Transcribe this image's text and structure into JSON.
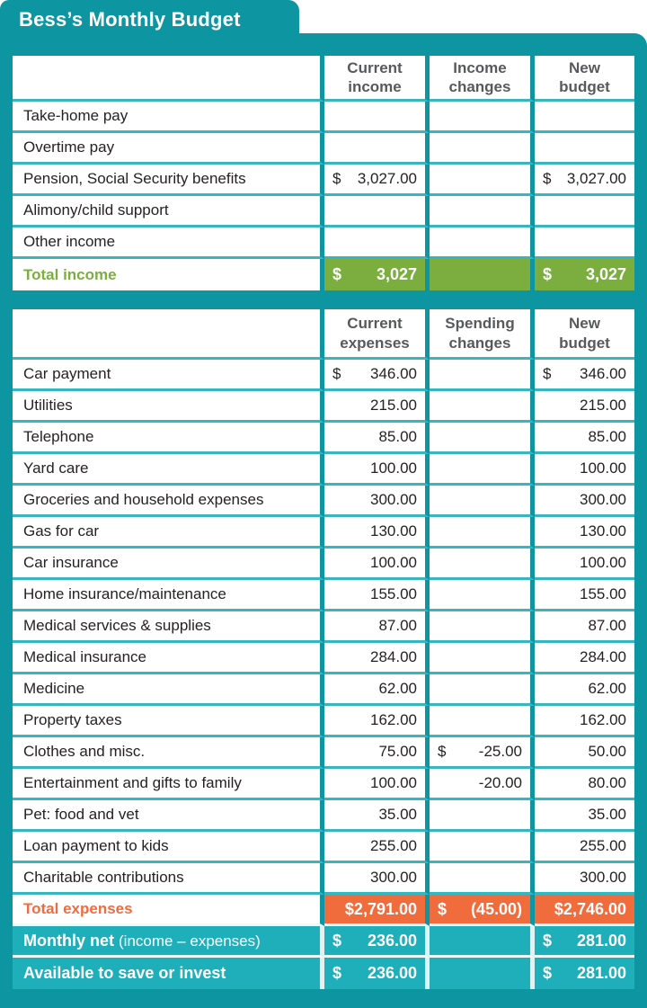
{
  "title": "Bess’s Monthly Budget",
  "colors": {
    "frame_teal": "#0d96a1",
    "summary_row_teal": "#1eafba",
    "row_separator_teal": "#35b6c1",
    "total_income_green": "#7bae3f",
    "total_expenses_orange": "#f16c3d",
    "header_text_gray": "#58595b",
    "body_text": "#262223"
  },
  "income_table": {
    "headers": [
      "",
      "Current\nincome",
      "Income\nchanges",
      "New\nbudget"
    ],
    "rows": [
      {
        "label": "Take-home pay",
        "cells": [
          null,
          null,
          null
        ]
      },
      {
        "label": "Overtime pay",
        "cells": [
          null,
          null,
          null
        ]
      },
      {
        "label": "Pension, Social Security benefits",
        "cells": [
          {
            "d": "$",
            "a": "3,027.00"
          },
          null,
          {
            "d": "$",
            "a": "3,027.00"
          }
        ]
      },
      {
        "label": "Alimony/child support",
        "cells": [
          null,
          null,
          null
        ]
      },
      {
        "label": "Other income",
        "cells": [
          null,
          null,
          null
        ]
      },
      {
        "label": "Total income",
        "style": "green",
        "cells": [
          {
            "d": "$",
            "a": "3,027"
          },
          null,
          {
            "d": "$",
            "a": "3,027"
          }
        ]
      }
    ]
  },
  "expenses_table": {
    "headers": [
      "",
      "Current\nexpenses",
      "Spending\nchanges",
      "New\nbudget"
    ],
    "rows": [
      {
        "label": "Car payment",
        "cells": [
          {
            "d": "$",
            "a": "346.00"
          },
          null,
          {
            "d": "$",
            "a": "346.00"
          }
        ]
      },
      {
        "label": "Utilities",
        "cells": [
          {
            "a": "215.00"
          },
          null,
          {
            "a": "215.00"
          }
        ]
      },
      {
        "label": "Telephone",
        "cells": [
          {
            "a": "85.00"
          },
          null,
          {
            "a": "85.00"
          }
        ]
      },
      {
        "label": "Yard care",
        "cells": [
          {
            "a": "100.00"
          },
          null,
          {
            "a": "100.00"
          }
        ]
      },
      {
        "label": "Groceries and household expenses",
        "cells": [
          {
            "a": "300.00"
          },
          null,
          {
            "a": "300.00"
          }
        ]
      },
      {
        "label": "Gas for car",
        "cells": [
          {
            "a": "130.00"
          },
          null,
          {
            "a": "130.00"
          }
        ]
      },
      {
        "label": "Car insurance",
        "cells": [
          {
            "a": "100.00"
          },
          null,
          {
            "a": "100.00"
          }
        ]
      },
      {
        "label": "Home insurance/maintenance",
        "cells": [
          {
            "a": "155.00"
          },
          null,
          {
            "a": "155.00"
          }
        ]
      },
      {
        "label": "Medical services & supplies",
        "cells": [
          {
            "a": "87.00"
          },
          null,
          {
            "a": "87.00"
          }
        ]
      },
      {
        "label": "Medical insurance",
        "cells": [
          {
            "a": "284.00"
          },
          null,
          {
            "a": "284.00"
          }
        ]
      },
      {
        "label": "Medicine",
        "cells": [
          {
            "a": "62.00"
          },
          null,
          {
            "a": "62.00"
          }
        ]
      },
      {
        "label": "Property taxes",
        "cells": [
          {
            "a": "162.00"
          },
          null,
          {
            "a": "162.00"
          }
        ]
      },
      {
        "label": "Clothes and misc.",
        "cells": [
          {
            "a": "75.00"
          },
          {
            "d": "$",
            "a": "-25.00"
          },
          {
            "a": "50.00"
          }
        ]
      },
      {
        "label": "Entertainment and gifts to family",
        "cells": [
          {
            "a": "100.00"
          },
          {
            "a": "-20.00"
          },
          {
            "a": "80.00"
          }
        ]
      },
      {
        "label": "Pet: food and vet",
        "cells": [
          {
            "a": "35.00"
          },
          null,
          {
            "a": "35.00"
          }
        ]
      },
      {
        "label": "Loan payment to kids",
        "cells": [
          {
            "a": "255.00"
          },
          null,
          {
            "a": "255.00"
          }
        ]
      },
      {
        "label": "Charitable contributions",
        "cells": [
          {
            "a": "300.00"
          },
          null,
          {
            "a": "300.00"
          }
        ]
      },
      {
        "label": "Total expenses",
        "style": "orange",
        "cells": [
          {
            "a": "$2,791.00"
          },
          {
            "d": "$",
            "a": "(45.00)"
          },
          {
            "a": "$2,746.00"
          }
        ]
      },
      {
        "label": "Monthly net",
        "label_suffix": "(income – expenses)",
        "style": "teal",
        "cells": [
          {
            "d": "$",
            "a": "236.00"
          },
          null,
          {
            "d": "$",
            "a": "281.00"
          }
        ]
      },
      {
        "label": "Available to save or invest",
        "style": "teal",
        "cells": [
          {
            "d": "$",
            "a": "236.00"
          },
          null,
          {
            "d": "$",
            "a": "281.00"
          }
        ]
      }
    ]
  }
}
